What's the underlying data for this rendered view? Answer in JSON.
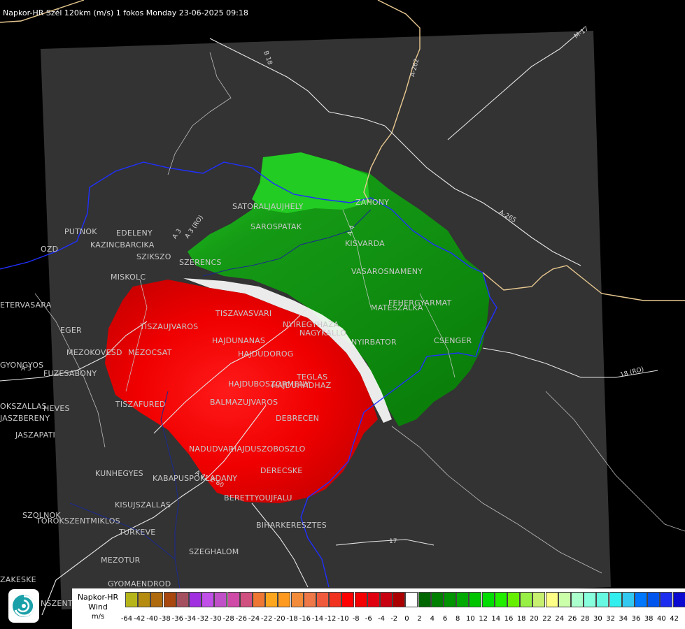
{
  "header": {
    "title": "Napkor-HR Szél 120km (m/s) 1 fokos Monday 23-06-2025 09:18"
  },
  "legend": {
    "name_lines": [
      "Napkor-HR",
      "Wind",
      "m/s"
    ],
    "ticks": [
      "-64",
      "-42",
      "-40",
      "-38",
      "-36",
      "-34",
      "-32",
      "-30",
      "-28",
      "-26",
      "-24",
      "-22",
      "-20",
      "-18",
      "-16",
      "-14",
      "-12",
      "-10",
      "-8",
      "-6",
      "-4",
      "-2",
      "0",
      "2",
      "4",
      "6",
      "8",
      "10",
      "12",
      "14",
      "16",
      "18",
      "20",
      "22",
      "24",
      "26",
      "28",
      "30",
      "32",
      "34",
      "36",
      "38",
      "40",
      "42"
    ],
    "colors": [
      "#b5b519",
      "#b58c10",
      "#b06a0e",
      "#a8470e",
      "#a55060",
      "#a030e0",
      "#c050e8",
      "#c050c8",
      "#d04aa8",
      "#d05080",
      "#ee7833",
      "#ffa61f",
      "#ff9a1f",
      "#f28c3a",
      "#ee7848",
      "#f05a3c",
      "#f0321e",
      "#ff0000",
      "#f50000",
      "#e00010",
      "#c80010",
      "#aa0000",
      "#ffffff",
      "#006600",
      "#008000",
      "#009500",
      "#00aa00",
      "#00c400",
      "#00dd00",
      "#22ee00",
      "#66f000",
      "#99f044",
      "#c8f070",
      "#ffff88",
      "#ccffaa",
      "#aaffcc",
      "#88ffdd",
      "#66f8e0",
      "#33eeee",
      "#33c8f0",
      "#0077ff",
      "#0055ee",
      "#1c2df0",
      "#0a0ad0"
    ]
  },
  "logo": {
    "icon": "swirl-logo-icon"
  },
  "roads": [
    "B 18",
    "A-262",
    "M-17",
    "A 3",
    "A-265",
    "18 (RO)",
    "A 3",
    "E 60",
    "A 42",
    "17",
    "A 3 (RO)",
    "A 4"
  ],
  "towns": [
    "SATORALJAUJHELY",
    "SAROSPATAK",
    "ZAHONY",
    "KISVARDA",
    "VASAROSNAMENY",
    "PUTNOK",
    "EDELENY",
    "KAZINCBARCIKA",
    "SZIKSZO",
    "SZERENCS",
    "MISKOLC",
    "ETERVASARA",
    "TISZAUJVAROS",
    "TISZAVASVARI",
    "NYIREGYHAZA",
    "NAGYKALLO",
    "MATESZALKA",
    "FEHERGYARMAT",
    "EGER",
    "HAJDUNANAS",
    "HAJDUDOROG",
    "NYIRBATOR",
    "CSENGER",
    "MEZOKOVESD",
    "MEZOCSAT",
    "GYONGYOS",
    "FUZESABONY",
    "HAJDUBOSZORMENY",
    "HAJDUHADHAZ",
    "TEGLAS",
    "TISZAFURED",
    "BALMAZUJVAROS",
    "HEVES",
    "JASZAPATI",
    "DEBRECEN",
    "NADUDVAR",
    "HAJDUSZOBOSZLO",
    "KUNHEGYES",
    "KABA",
    "PUSPOKLADANY",
    "DERECSKE",
    "KISUJSZALLAS",
    "BERETTYOUJFALU",
    "SZOLNOK",
    "TOROKSZENTMIKLOS",
    "BIHARKERESZTES",
    "TURKEVE",
    "SZEGHALOM",
    "MEZOTUR",
    "GYOMAENDROD",
    "ZAKESKE",
    "JASZBERENY",
    "OKSZALLAS",
    "OZD",
    "NSZENT"
  ]
}
